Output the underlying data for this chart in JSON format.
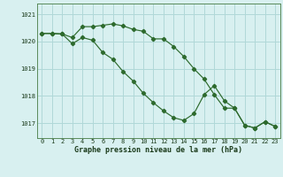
{
  "hours": [
    0,
    1,
    2,
    3,
    4,
    5,
    6,
    7,
    8,
    9,
    10,
    11,
    12,
    13,
    14,
    15,
    16,
    17,
    18,
    19,
    20,
    21,
    22,
    23
  ],
  "series1": [
    1020.3,
    1020.3,
    1020.28,
    1020.15,
    1020.55,
    1020.55,
    1020.6,
    1020.65,
    1020.58,
    1020.45,
    1020.38,
    1020.1,
    1020.1,
    1019.82,
    1019.45,
    1019.0,
    1018.62,
    1018.05,
    1017.55,
    1017.55,
    1016.92,
    1016.82,
    1017.05,
    1016.88
  ],
  "series2": [
    1020.3,
    1020.3,
    1020.28,
    1019.92,
    1020.15,
    1020.05,
    1019.6,
    1019.35,
    1018.9,
    1018.55,
    1018.1,
    1017.75,
    1017.45,
    1017.2,
    1017.1,
    1017.35,
    1018.05,
    1018.38,
    1017.82,
    1017.55,
    1016.92,
    1016.82,
    1017.05,
    1016.88
  ],
  "bg_color": "#d8f0f0",
  "grid_color": "#b0d8d8",
  "line_color": "#2d6a2d",
  "xlabel": "Graphe pression niveau de la mer (hPa)",
  "ylim_min": 1016.45,
  "ylim_max": 1021.4,
  "yticks": [
    1017,
    1018,
    1019,
    1020,
    1021
  ],
  "xtick_labels": [
    "0",
    "1",
    "2",
    "3",
    "4",
    "5",
    "6",
    "7",
    "8",
    "9",
    "10",
    "11",
    "12",
    "13",
    "14",
    "15",
    "16",
    "17",
    "18",
    "19",
    "20",
    "21",
    "22",
    "23"
  ],
  "tick_fontsize": 5.0,
  "xlabel_fontsize": 6.0,
  "marker_size": 2.2,
  "linewidth": 0.85
}
